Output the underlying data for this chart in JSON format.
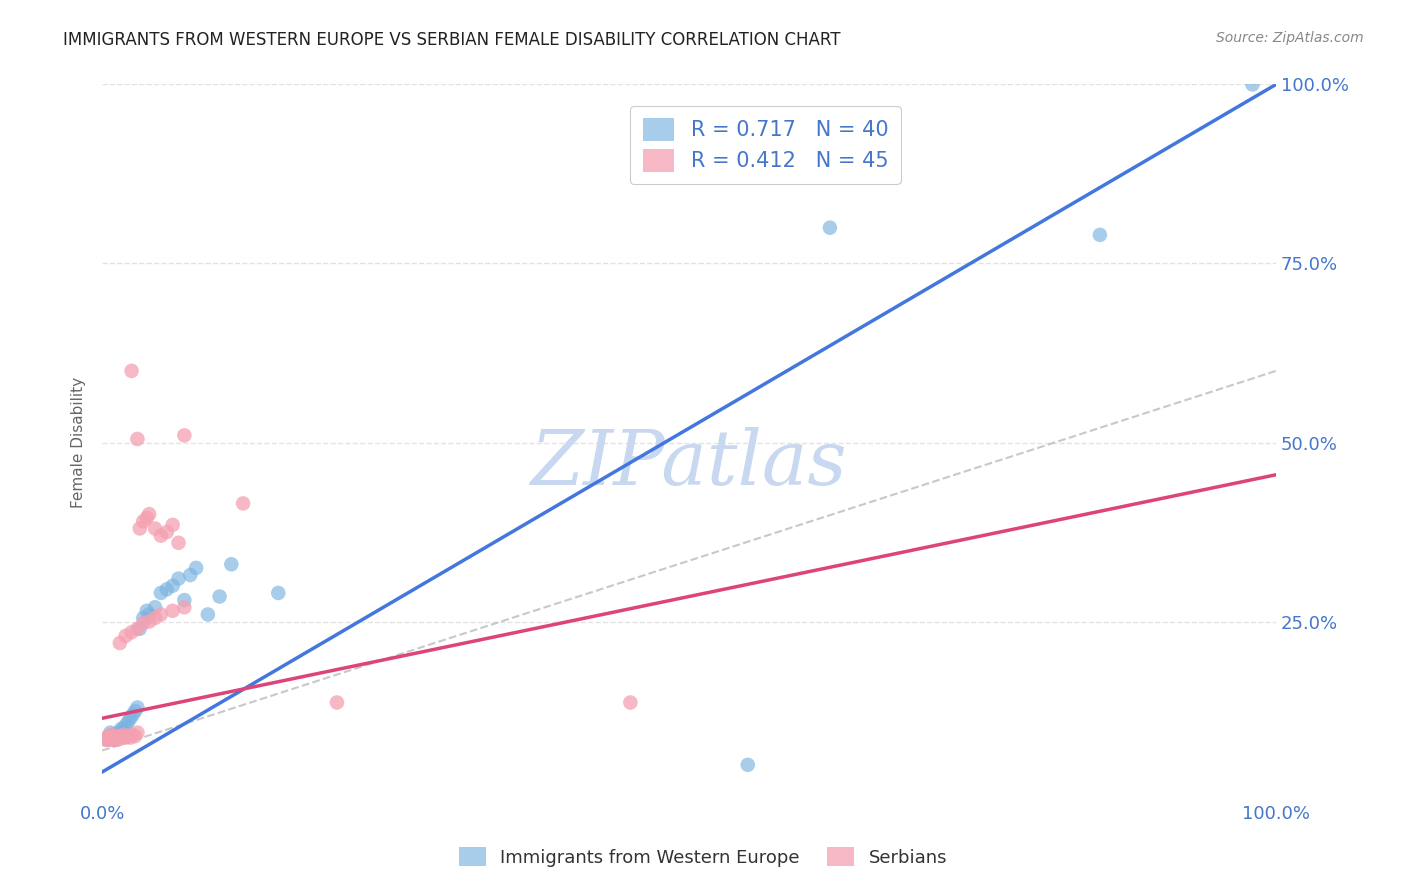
{
  "title": "IMMIGRANTS FROM WESTERN EUROPE VS SERBIAN FEMALE DISABILITY CORRELATION CHART",
  "source": "Source: ZipAtlas.com",
  "ylabel": "Female Disability",
  "xlim": [
    0,
    1
  ],
  "ylim": [
    0,
    1
  ],
  "blue_color": "#7ab3e0",
  "pink_color": "#f4a0b0",
  "blue_line_color": "#4477dd",
  "pink_line_color": "#dd4477",
  "dashed_line_color": "#bbbbbb",
  "watermark_text": "ZIPatlas",
  "watermark_color": "#c8d8f0",
  "legend_label_blue": "Immigrants from Western Europe",
  "legend_label_pink": "Serbians",
  "legend_R_blue": "R = 0.717",
  "legend_N_blue": "N = 40",
  "legend_R_pink": "R = 0.412",
  "legend_N_pink": "N = 45",
  "background_color": "#ffffff",
  "grid_color": "#dddddd",
  "axis_label_color": "#4477cc",
  "title_color": "#222222",
  "source_color": "#888888",
  "ylabel_color": "#666666",
  "blue_line_x0": 0.0,
  "blue_line_y0": 0.04,
  "blue_line_x1": 1.0,
  "blue_line_y1": 1.0,
  "pink_line_x0": 0.0,
  "pink_line_y0": 0.115,
  "pink_line_x1": 1.0,
  "pink_line_y1": 0.455,
  "dashed_line_x0": 0.0,
  "dashed_line_y0": 0.07,
  "dashed_line_x1": 1.0,
  "dashed_line_y1": 0.6,
  "blue_x": [
    0.004,
    0.006,
    0.007,
    0.008,
    0.009,
    0.01,
    0.011,
    0.012,
    0.013,
    0.014,
    0.015,
    0.016,
    0.017,
    0.018,
    0.02,
    0.022,
    0.024,
    0.026,
    0.028,
    0.03,
    0.032,
    0.035,
    0.038,
    0.04,
    0.045,
    0.05,
    0.055,
    0.06,
    0.065,
    0.07,
    0.075,
    0.08,
    0.09,
    0.1,
    0.11,
    0.15,
    0.55,
    0.62,
    0.85,
    0.98
  ],
  "blue_y": [
    0.085,
    0.09,
    0.095,
    0.088,
    0.092,
    0.085,
    0.09,
    0.088,
    0.092,
    0.095,
    0.09,
    0.1,
    0.095,
    0.1,
    0.105,
    0.11,
    0.115,
    0.12,
    0.125,
    0.13,
    0.24,
    0.255,
    0.265,
    0.26,
    0.27,
    0.29,
    0.295,
    0.3,
    0.31,
    0.28,
    0.315,
    0.325,
    0.26,
    0.285,
    0.33,
    0.29,
    0.05,
    0.8,
    0.79,
    1.0
  ],
  "pink_x": [
    0.003,
    0.005,
    0.006,
    0.007,
    0.008,
    0.009,
    0.01,
    0.011,
    0.012,
    0.013,
    0.014,
    0.015,
    0.016,
    0.018,
    0.02,
    0.022,
    0.024,
    0.026,
    0.028,
    0.03,
    0.032,
    0.035,
    0.038,
    0.04,
    0.045,
    0.05,
    0.055,
    0.06,
    0.065,
    0.07,
    0.015,
    0.02,
    0.025,
    0.03,
    0.035,
    0.04,
    0.045,
    0.05,
    0.06,
    0.07,
    0.025,
    0.03,
    0.2,
    0.45,
    0.12
  ],
  "pink_y": [
    0.085,
    0.09,
    0.085,
    0.088,
    0.092,
    0.085,
    0.087,
    0.09,
    0.088,
    0.085,
    0.088,
    0.09,
    0.087,
    0.092,
    0.088,
    0.09,
    0.088,
    0.092,
    0.09,
    0.095,
    0.38,
    0.39,
    0.395,
    0.4,
    0.38,
    0.37,
    0.375,
    0.385,
    0.36,
    0.51,
    0.22,
    0.23,
    0.235,
    0.24,
    0.248,
    0.25,
    0.255,
    0.26,
    0.265,
    0.27,
    0.6,
    0.505,
    0.137,
    0.137,
    0.415
  ]
}
